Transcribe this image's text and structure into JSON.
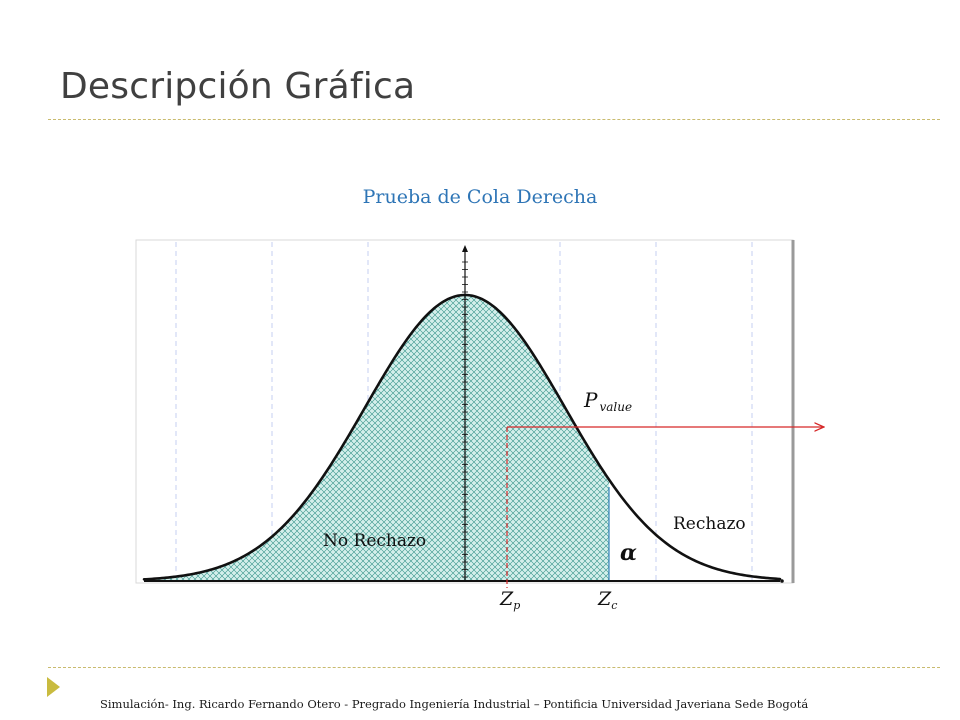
{
  "slide": {
    "title": "Descripción Gráfica",
    "footer": "Simulación- Ing. Ricardo Fernando Otero - Pregrado Ingeniería Industrial – Pontificia Universidad Javeriana Sede Bogotá"
  },
  "diagram": {
    "title": "Prueba de Cola Derecha",
    "region_accept": "No Rechazo",
    "region_reject": "Rechazo",
    "alpha_symbol": "α",
    "pvalue": {
      "main": "P",
      "sub": "value"
    },
    "zp": {
      "main": "Z",
      "sub": "p"
    },
    "zc": {
      "main": "Z",
      "sub": "c"
    },
    "colors": {
      "curve": "#111111",
      "shade": "#d4efeb",
      "hatch": "#2f8f86",
      "critical_line": "#2e7fb6",
      "pvalue_arrow": "#d62828",
      "grid": "#c6cff0"
    }
  }
}
